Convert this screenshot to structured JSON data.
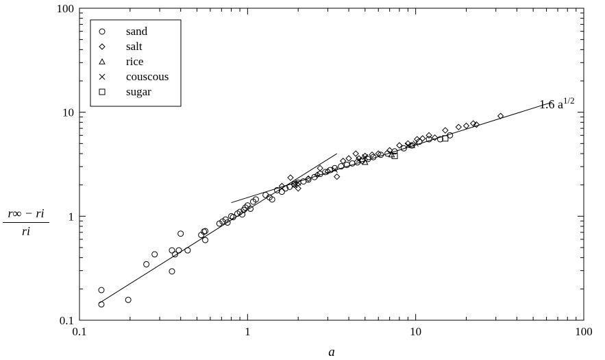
{
  "chart_data": {
    "type": "scatter",
    "xscale": "log",
    "yscale": "log",
    "xlim": [
      0.1,
      100
    ],
    "ylim": [
      0.1,
      100
    ],
    "xticks": [
      0.1,
      1,
      10,
      100
    ],
    "xtick_labels": [
      "0.1",
      "1",
      "10",
      "100"
    ],
    "yticks": [
      0.1,
      1,
      10,
      100
    ],
    "ytick_labels": [
      "0.1",
      "1",
      "10",
      "100"
    ],
    "xlabel": "a",
    "ylabel": {
      "numerator": "r∞ − ri",
      "denominator": "ri"
    },
    "grid": false,
    "legend_position": "top-left",
    "series": [
      {
        "name": "sand",
        "marker": "circle",
        "points": [
          [
            0.135,
            0.195
          ],
          [
            0.135,
            0.142
          ],
          [
            0.195,
            0.157
          ],
          [
            0.25,
            0.345
          ],
          [
            0.28,
            0.43
          ],
          [
            0.355,
            0.47
          ],
          [
            0.355,
            0.295
          ],
          [
            0.37,
            0.43
          ],
          [
            0.39,
            0.47
          ],
          [
            0.4,
            0.68
          ],
          [
            0.44,
            0.47
          ],
          [
            0.53,
            0.66
          ],
          [
            0.55,
            0.71
          ],
          [
            0.56,
            0.72
          ],
          [
            0.56,
            0.59
          ],
          [
            0.68,
            0.85
          ],
          [
            0.71,
            0.89
          ],
          [
            0.74,
            0.93
          ],
          [
            0.76,
            0.87
          ],
          [
            0.8,
            1.0
          ],
          [
            0.82,
            0.98
          ],
          [
            0.87,
            1.06
          ],
          [
            0.9,
            1.1
          ],
          [
            0.93,
            1.04
          ],
          [
            0.95,
            1.15
          ],
          [
            0.97,
            1.21
          ],
          [
            1.0,
            1.27
          ],
          [
            1.04,
            1.18
          ],
          [
            1.08,
            1.38
          ],
          [
            1.12,
            1.45
          ],
          [
            1.28,
            1.6
          ],
          [
            1.35,
            1.52
          ],
          [
            1.4,
            1.45
          ],
          [
            1.5,
            1.78
          ],
          [
            1.6,
            1.72
          ],
          [
            1.68,
            1.85
          ],
          [
            1.78,
            1.92
          ],
          [
            1.9,
            2.04
          ],
          [
            2.0,
            2.1
          ],
          [
            2.15,
            2.16
          ],
          [
            2.3,
            2.25
          ],
          [
            2.5,
            2.38
          ],
          [
            2.7,
            2.55
          ],
          [
            2.9,
            2.66
          ],
          [
            3.1,
            2.78
          ],
          [
            3.3,
            2.9
          ],
          [
            3.6,
            3.02
          ],
          [
            3.9,
            3.12
          ],
          [
            4.2,
            3.22
          ],
          [
            4.5,
            3.3
          ],
          [
            4.8,
            3.42
          ],
          [
            5.2,
            3.55
          ],
          [
            5.6,
            3.7
          ],
          [
            6.2,
            3.9
          ],
          [
            6.8,
            4.0
          ],
          [
            7.5,
            4.2
          ],
          [
            8.5,
            4.5
          ],
          [
            9.5,
            4.8
          ],
          [
            10.5,
            5.2
          ],
          [
            12,
            5.5
          ],
          [
            14,
            5.5
          ],
          [
            16,
            6.0
          ]
        ]
      },
      {
        "name": "salt",
        "marker": "diamond",
        "points": [
          [
            1.6,
            1.95
          ],
          [
            1.8,
            2.35
          ],
          [
            1.9,
            2.0
          ],
          [
            2.0,
            1.85
          ],
          [
            2.3,
            2.3
          ],
          [
            2.6,
            2.5
          ],
          [
            2.7,
            2.9
          ],
          [
            3.0,
            2.7
          ],
          [
            3.4,
            2.4
          ],
          [
            3.7,
            3.4
          ],
          [
            4.0,
            3.6
          ],
          [
            4.4,
            4.0
          ],
          [
            4.6,
            3.6
          ],
          [
            5.0,
            3.8
          ],
          [
            5.5,
            3.9
          ],
          [
            6.0,
            4.0
          ],
          [
            7.0,
            4.3
          ],
          [
            8.0,
            4.8
          ],
          [
            9.0,
            5.0
          ],
          [
            10.2,
            5.5
          ],
          [
            11,
            5.6
          ],
          [
            12,
            6.0
          ],
          [
            13,
            5.7
          ],
          [
            15,
            6.7
          ],
          [
            18,
            7.2
          ],
          [
            20,
            7.4
          ],
          [
            22,
            7.8
          ],
          [
            23,
            7.6
          ],
          [
            32,
            9.2
          ]
        ]
      },
      {
        "name": "rice",
        "marker": "triangle",
        "points": [
          [
            5.0,
            3.3
          ],
          [
            7.2,
            3.9
          ],
          [
            9.5,
            4.8
          ]
        ]
      },
      {
        "name": "couscous",
        "marker": "cross",
        "points": [
          [
            1.9,
            2.0
          ],
          [
            2.0,
            2.1
          ],
          [
            3.3,
            2.8
          ],
          [
            4.6,
            3.5
          ],
          [
            5.0,
            3.7
          ],
          [
            9.0,
            4.8
          ],
          [
            10,
            5.0
          ]
        ]
      },
      {
        "name": "sugar",
        "marker": "square",
        "points": [
          [
            7.5,
            3.8
          ],
          [
            15,
            5.6
          ]
        ]
      }
    ],
    "fit_lines": [
      {
        "label": "",
        "x": [
          0.13,
          3.4
        ],
        "y": [
          0.145,
          4.0
        ]
      },
      {
        "label": "1.6 a",
        "label_superscript": "1/2",
        "x": [
          0.8,
          65
        ],
        "y": [
          1.35,
          12.5
        ]
      }
    ]
  }
}
